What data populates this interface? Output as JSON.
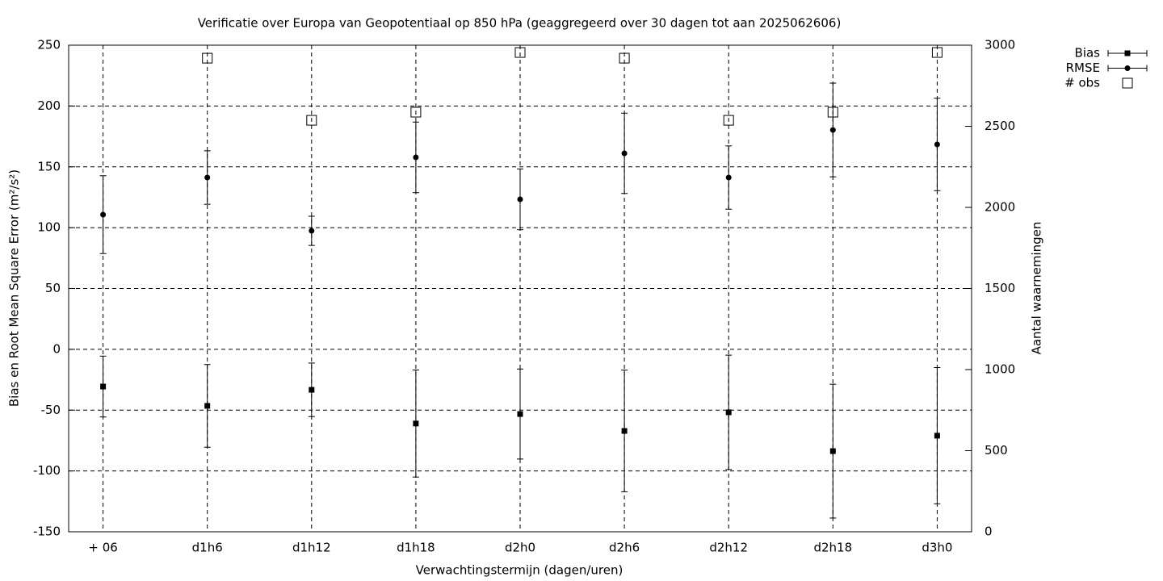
{
  "chart_data": {
    "type": "errorbar",
    "title": "Verificatie over Europa van Geopotentiaal op 850 hPa (geaggregeerd over 30 dagen tot aan 2025062606)",
    "x_label": "Verwachtingstermijn (dagen/uren)",
    "y_label": "Bias en Root Mean Square Error (m²/s²)",
    "y2_label": "Aantal waarnemingen",
    "categories": [
      "+ 06",
      "d1h6",
      "d1h12",
      "d1h18",
      "d2h0",
      "d2h6",
      "d2h12",
      "d2h18",
      "d3h0"
    ],
    "series": [
      {
        "name": "Bias",
        "color": "#000000",
        "marker": "square",
        "values": [
          -30.6,
          -46.5,
          -33.3,
          -61,
          -53.2,
          -67.1,
          -51.8,
          -83.7,
          -71
        ],
        "errors": [
          25,
          34,
          22,
          44,
          37,
          50,
          47,
          55,
          56
        ]
      },
      {
        "name": "RMSE",
        "color": "#000000",
        "marker": "circle",
        "values": [
          110.7,
          141.2,
          97.4,
          157.8,
          123.3,
          161.1,
          141.2,
          180.3,
          168.4
        ],
        "errors": [
          32,
          22,
          12,
          29,
          25,
          33,
          26,
          38.5,
          38
        ]
      },
      {
        "name": "# obs",
        "color": "#000000",
        "marker": "open-square",
        "axis": "y2",
        "values": [
          null,
          2920,
          2537,
          2587,
          2955,
          2920,
          2537,
          2587,
          2955
        ]
      }
    ],
    "ylim": [
      -150,
      250
    ],
    "yticks": [
      -150,
      -100,
      -50,
      0,
      50,
      100,
      150,
      200,
      250
    ],
    "y2lim": [
      0,
      3000
    ],
    "y2ticks": [
      0,
      500,
      1000,
      1500,
      2000,
      2500,
      3000
    ],
    "grid": true,
    "legend": "top-right-outside"
  }
}
